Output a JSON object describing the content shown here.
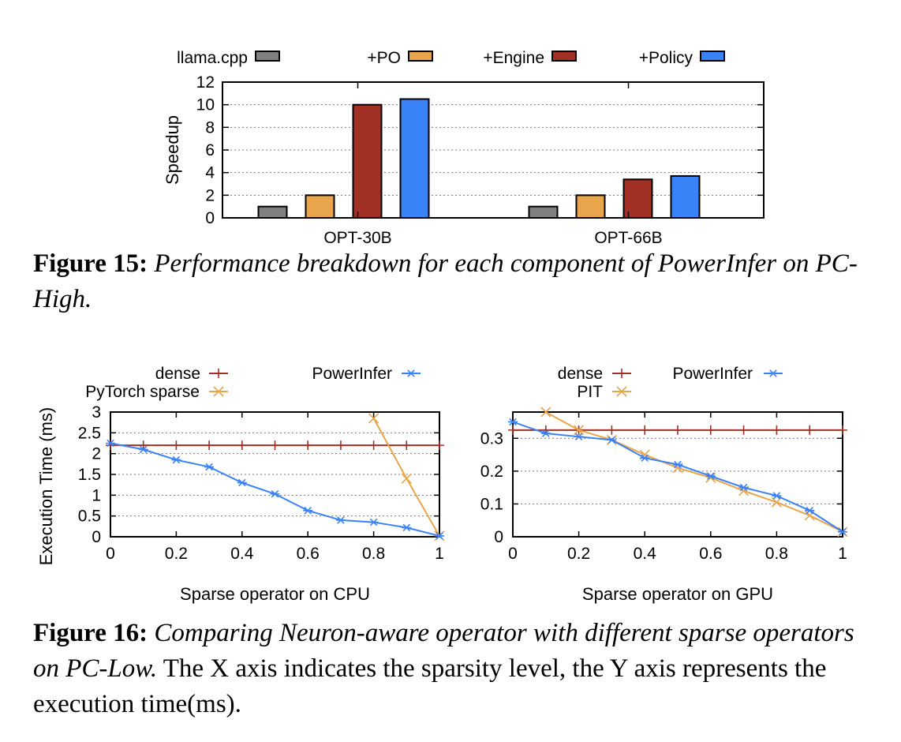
{
  "fig15": {
    "caption_label": "Figure 15:",
    "caption_text": "Performance breakdown for each component of PowerInfer on PC-High.",
    "chart_data": {
      "type": "bar",
      "categories": [
        "OPT-30B",
        "OPT-66B"
      ],
      "ylabel": "Speedup",
      "ylim": [
        0,
        12
      ],
      "yticks": [
        0,
        2,
        4,
        6,
        8,
        10,
        12
      ],
      "grid": true,
      "legend_position": "top",
      "series": [
        {
          "name": "llama.cpp",
          "color": "#808080",
          "values": [
            1,
            1
          ]
        },
        {
          "name": "+PO",
          "color": "#E8A54B",
          "values": [
            2,
            2
          ]
        },
        {
          "name": "+Engine",
          "color": "#A23024",
          "values": [
            10,
            3.4
          ]
        },
        {
          "name": "+Policy",
          "color": "#3A82F7",
          "values": [
            10.5,
            3.7
          ]
        }
      ]
    }
  },
  "fig16": {
    "caption_label": "Figure 16:",
    "caption_italic": "Comparing Neuron-aware operator with different sparse operators on PC-Low.",
    "caption_rest": " The X axis indicates the sparsity level, the Y axis represents the execution time(ms).",
    "ylabel": "Execution Time (ms)",
    "chart_data": [
      {
        "type": "line",
        "title": "",
        "xlabel": "Sparse operator on CPU",
        "xlim": [
          0,
          1
        ],
        "ylim": [
          0,
          3
        ],
        "xticks": [
          "0",
          "0.2",
          "0.4",
          "0.6",
          "0.8",
          "1"
        ],
        "yticks": [
          "0",
          "0.5",
          "1",
          "1.5",
          "2",
          "2.5",
          "3"
        ],
        "series": [
          {
            "name": "dense",
            "color": "#A23024",
            "marker": "+",
            "x": [
              0,
              0.1,
              0.2,
              0.3,
              0.4,
              0.5,
              0.6,
              0.7,
              0.8,
              0.9,
              1
            ],
            "y": [
              2.2,
              2.2,
              2.2,
              2.2,
              2.2,
              2.2,
              2.2,
              2.2,
              2.2,
              2.2,
              2.2
            ]
          },
          {
            "name": "PyTorch sparse",
            "color": "#E8A54B",
            "marker": "x",
            "x": [
              0.8,
              0.9,
              1
            ],
            "y": [
              2.85,
              1.4,
              0.02
            ]
          },
          {
            "name": "PowerInfer",
            "color": "#3A82F7",
            "marker": "*",
            "x": [
              0,
              0.1,
              0.2,
              0.3,
              0.4,
              0.5,
              0.6,
              0.7,
              0.8,
              0.9,
              1
            ],
            "y": [
              2.25,
              2.1,
              1.85,
              1.68,
              1.3,
              1.03,
              0.63,
              0.4,
              0.35,
              0.22,
              0.02
            ]
          }
        ]
      },
      {
        "type": "line",
        "title": "",
        "xlabel": "Sparse operator on GPU",
        "xlim": [
          0,
          1
        ],
        "ylim": [
          0,
          0.38
        ],
        "xticks": [
          "0",
          "0.2",
          "0.4",
          "0.6",
          "0.8",
          "1"
        ],
        "yticks": [
          "0",
          "0.1",
          "0.2",
          "0.3"
        ],
        "series": [
          {
            "name": "dense",
            "color": "#A23024",
            "marker": "+",
            "x": [
              0,
              0.1,
              0.2,
              0.3,
              0.4,
              0.5,
              0.6,
              0.7,
              0.8,
              0.9,
              1
            ],
            "y": [
              0.325,
              0.325,
              0.325,
              0.325,
              0.325,
              0.325,
              0.325,
              0.325,
              0.325,
              0.325,
              0.325
            ]
          },
          {
            "name": "PIT",
            "color": "#E8A54B",
            "marker": "x",
            "x": [
              0.1,
              0.2,
              0.3,
              0.4,
              0.5,
              0.6,
              0.7,
              0.8,
              0.9,
              1
            ],
            "y": [
              0.38,
              0.325,
              0.295,
              0.25,
              0.21,
              0.18,
              0.14,
              0.105,
              0.065,
              0.015
            ]
          },
          {
            "name": "PowerInfer",
            "color": "#3A82F7",
            "marker": "*",
            "x": [
              0,
              0.1,
              0.2,
              0.3,
              0.4,
              0.5,
              0.6,
              0.7,
              0.8,
              0.9,
              1
            ],
            "y": [
              0.35,
              0.315,
              0.305,
              0.295,
              0.24,
              0.22,
              0.185,
              0.15,
              0.125,
              0.08,
              0.015
            ]
          }
        ]
      }
    ]
  }
}
